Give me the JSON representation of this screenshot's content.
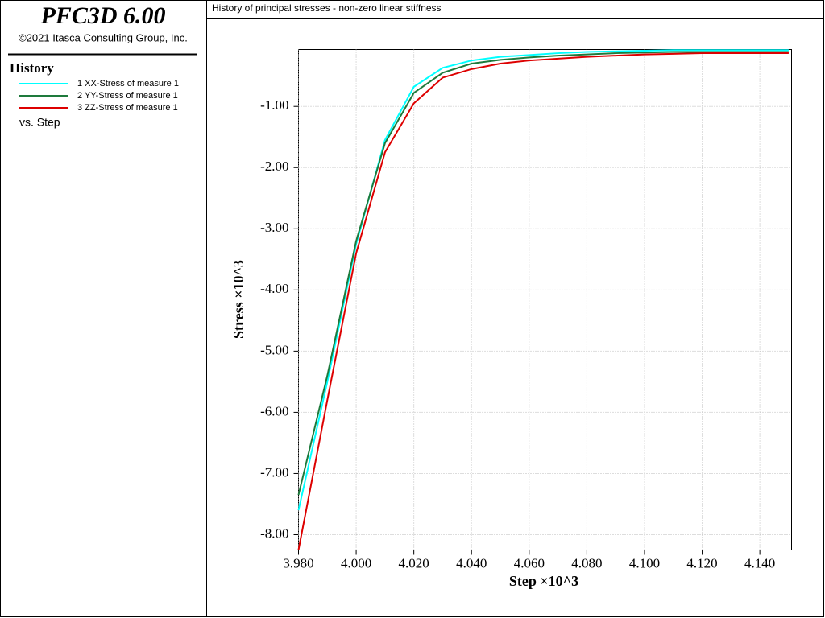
{
  "app": {
    "name": "PFC3D 6.00",
    "copyright": "©2021 Itasca Consulting Group, Inc.",
    "panel_title": "History",
    "vs_label": "vs. Step"
  },
  "chart_data": {
    "type": "line",
    "title": "History of principal stresses - non-zero linear stiffness",
    "x_label": "Step ×10^3",
    "y_label": "Stress ×10^3",
    "x": [
      3.98,
      3.99,
      4.0,
      4.01,
      4.02,
      4.03,
      4.04,
      4.05,
      4.06,
      4.07,
      4.08,
      4.09,
      4.1,
      4.11,
      4.12,
      4.13,
      4.14,
      4.15
    ],
    "series": [
      {
        "name": "1 XX-Stress of measure 1",
        "color": "#00ffff",
        "values": [
          -7.6,
          -5.5,
          -3.25,
          -1.55,
          -0.68,
          -0.37,
          -0.25,
          -0.19,
          -0.16,
          -0.13,
          -0.11,
          -0.1,
          -0.09,
          -0.08,
          -0.08,
          -0.08,
          -0.08,
          -0.08
        ]
      },
      {
        "name": "2 YY-Stress of measure 1",
        "color": "#1e7a3c",
        "values": [
          -7.35,
          -5.4,
          -3.2,
          -1.6,
          -0.78,
          -0.45,
          -0.3,
          -0.24,
          -0.2,
          -0.17,
          -0.15,
          -0.13,
          -0.12,
          -0.11,
          -0.11,
          -0.11,
          -0.11,
          -0.11
        ]
      },
      {
        "name": "3 ZZ-Stress of measure 1",
        "color": "#dd0000",
        "values": [
          -8.25,
          -5.8,
          -3.4,
          -1.75,
          -0.95,
          -0.53,
          -0.39,
          -0.3,
          -0.25,
          -0.22,
          -0.19,
          -0.17,
          -0.15,
          -0.14,
          -0.13,
          -0.13,
          -0.13,
          -0.13
        ]
      }
    ],
    "xlim": [
      3.98,
      4.151
    ],
    "ylim": [
      -8.25,
      -0.07
    ],
    "xticks": [
      {
        "value": 3.98,
        "label": "3.980"
      },
      {
        "value": 4.0,
        "label": "4.000"
      },
      {
        "value": 4.02,
        "label": "4.020"
      },
      {
        "value": 4.04,
        "label": "4.040"
      },
      {
        "value": 4.06,
        "label": "4.060"
      },
      {
        "value": 4.08,
        "label": "4.080"
      },
      {
        "value": 4.1,
        "label": "4.100"
      },
      {
        "value": 4.12,
        "label": "4.120"
      },
      {
        "value": 4.14,
        "label": "4.140"
      }
    ],
    "yticks": [
      {
        "value": -1,
        "label": "-1.00"
      },
      {
        "value": -2,
        "label": "-2.00"
      },
      {
        "value": -3,
        "label": "-3.00"
      },
      {
        "value": -4,
        "label": "-4.00"
      },
      {
        "value": -5,
        "label": "-5.00"
      },
      {
        "value": -6,
        "label": "-6.00"
      },
      {
        "value": -7,
        "label": "-7.00"
      },
      {
        "value": -8,
        "label": "-8.00"
      }
    ],
    "grid": true
  }
}
